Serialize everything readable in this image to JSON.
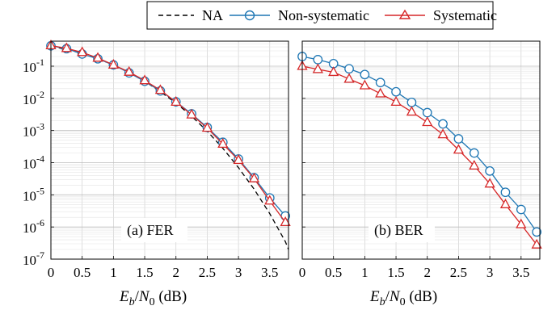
{
  "chart_data": [
    {
      "type": "line",
      "panel_label": "(a) FER",
      "xlabel": "E_b/N_0 (dB)",
      "xlabel_parts": {
        "sym1": "E",
        "sub1": "b",
        "slash": "/",
        "sym2": "N",
        "sub2": "0",
        "unit": " (dB)"
      },
      "ylabel": "",
      "x_ticks": [
        "0",
        "0.5",
        "1",
        "1.5",
        "2",
        "2.5",
        "3",
        "3.5"
      ],
      "y_scale": "log",
      "y_ticks": [
        {
          "base": "10",
          "exp": "-1"
        },
        {
          "base": "10",
          "exp": "-2"
        },
        {
          "base": "10",
          "exp": "-3"
        },
        {
          "base": "10",
          "exp": "-4"
        },
        {
          "base": "10",
          "exp": "-5"
        },
        {
          "base": "10",
          "exp": "-6"
        },
        {
          "base": "10",
          "exp": "-7"
        }
      ],
      "xlim": [
        0,
        3.8
      ],
      "ylim": [
        1e-07,
        0.6
      ],
      "grid": true,
      "series": [
        {
          "name": "NA",
          "style": "dashed",
          "color": "#000000",
          "x": [
            0,
            0.25,
            0.5,
            0.75,
            1.0,
            1.25,
            1.5,
            1.75,
            2.0,
            2.25,
            2.5,
            2.75,
            3.0,
            3.25,
            3.5,
            3.75,
            3.8
          ],
          "y": [
            0.42,
            0.33,
            0.25,
            0.17,
            0.11,
            0.065,
            0.034,
            0.016,
            0.0072,
            0.0028,
            0.00095,
            0.00028,
            7e-05,
            1.5e-05,
            2.6e-06,
            3.5e-07,
            2e-07
          ]
        },
        {
          "name": "Non-systematic",
          "marker": "circle",
          "color": "#1f77b4",
          "x": [
            0,
            0.25,
            0.5,
            0.75,
            1.0,
            1.25,
            1.5,
            1.75,
            2.0,
            2.25,
            2.5,
            2.75,
            3.0,
            3.25,
            3.5,
            3.75
          ],
          "y": [
            0.43,
            0.35,
            0.24,
            0.17,
            0.11,
            0.062,
            0.034,
            0.017,
            0.0078,
            0.0033,
            0.00125,
            0.00043,
            0.00013,
            3.4e-05,
            8e-06,
            2.2e-06
          ]
        },
        {
          "name": "Systematic",
          "marker": "triangle",
          "color": "#d62728",
          "x": [
            0,
            0.25,
            0.5,
            0.75,
            1.0,
            1.25,
            1.5,
            1.75,
            2.0,
            2.25,
            2.5,
            2.75,
            3.0,
            3.25,
            3.5,
            3.75
          ],
          "y": [
            0.44,
            0.36,
            0.27,
            0.18,
            0.11,
            0.066,
            0.036,
            0.018,
            0.0077,
            0.0031,
            0.0012,
            0.00038,
            0.00012,
            3.2e-05,
            6.5e-06,
            1.4e-06
          ]
        }
      ]
    },
    {
      "type": "line",
      "panel_label": "(b) BER",
      "xlabel": "E_b/N_0 (dB)",
      "xlabel_parts": {
        "sym1": "E",
        "sub1": "b",
        "slash": "/",
        "sym2": "N",
        "sub2": "0",
        "unit": " (dB)"
      },
      "ylabel": "",
      "x_ticks": [
        "0",
        "0.5",
        "1",
        "1.5",
        "2",
        "2.5",
        "3",
        "3.5"
      ],
      "y_scale": "log",
      "xlim": [
        0,
        3.8
      ],
      "ylim": [
        1e-07,
        0.6
      ],
      "grid": true,
      "series": [
        {
          "name": "Non-systematic",
          "marker": "circle",
          "color": "#1f77b4",
          "x": [
            0,
            0.25,
            0.5,
            0.75,
            1.0,
            1.25,
            1.5,
            1.75,
            2.0,
            2.25,
            2.5,
            2.75,
            3.0,
            3.25,
            3.5,
            3.75
          ],
          "y": [
            0.2,
            0.16,
            0.12,
            0.083,
            0.055,
            0.031,
            0.016,
            0.0075,
            0.0036,
            0.0016,
            0.00055,
            0.0002,
            5.5e-05,
            1.2e-05,
            3.5e-06,
            7e-07
          ]
        },
        {
          "name": "Systematic",
          "marker": "triangle",
          "color": "#d62728",
          "x": [
            0,
            0.25,
            0.5,
            0.75,
            1.0,
            1.25,
            1.5,
            1.75,
            2.0,
            2.25,
            2.5,
            2.75,
            3.0,
            3.25,
            3.5,
            3.75
          ],
          "y": [
            0.1,
            0.08,
            0.065,
            0.04,
            0.025,
            0.014,
            0.0077,
            0.0038,
            0.0018,
            0.00075,
            0.00025,
            8e-05,
            2.2e-05,
            5e-06,
            1.2e-06,
            2.8e-07
          ]
        }
      ]
    }
  ],
  "legend": {
    "placement": "top-center",
    "entries": [
      {
        "label": "NA",
        "style": "dashed",
        "color": "#000000"
      },
      {
        "label": "Non-systematic",
        "marker": "circle",
        "color": "#1f77b4"
      },
      {
        "label": "Systematic",
        "marker": "triangle",
        "color": "#d62728"
      }
    ]
  }
}
